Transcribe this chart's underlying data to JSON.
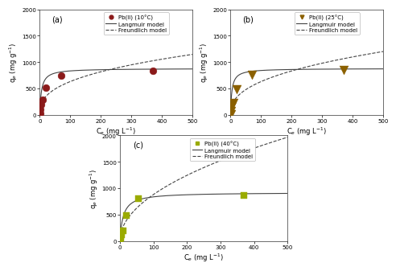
{
  "panels": [
    {
      "label": "(a)",
      "temp": "10",
      "marker_color": "#8B1A1A",
      "marker_style": "o",
      "marker_size": 4,
      "data_x": [
        1,
        2,
        5,
        10,
        20,
        70,
        370
      ],
      "data_y": [
        25,
        100,
        200,
        280,
        510,
        740,
        840
      ],
      "langmuir_qmax": 880,
      "langmuir_KL": 0.18,
      "freundlich_Kf": 115,
      "freundlich_n": 0.37,
      "xlim": [
        0,
        500
      ],
      "ylim": [
        0,
        2000
      ],
      "xlabel": "C$_e$ (mg L$^{-1}$)",
      "ylabel": "q$_e$ (mg g$^{-1}$)",
      "xticks": [
        0,
        100,
        200,
        300,
        400,
        500
      ],
      "yticks": [
        0,
        500,
        1000,
        1500,
        2000
      ]
    },
    {
      "label": "(b)",
      "temp": "25",
      "marker_color": "#8B6000",
      "marker_style": "v",
      "marker_size": 5,
      "data_x": [
        1,
        2,
        5,
        10,
        20,
        70,
        370
      ],
      "data_y": [
        15,
        80,
        170,
        230,
        490,
        760,
        850
      ],
      "langmuir_qmax": 880,
      "langmuir_KL": 0.22,
      "freundlich_Kf": 100,
      "freundlich_n": 0.4,
      "xlim": [
        0,
        500
      ],
      "ylim": [
        0,
        2000
      ],
      "xlabel": "C$_e$ (mg L$^{-1}$)",
      "ylabel": "q$_e$ (mg g$^{-1}$)",
      "xticks": [
        0,
        100,
        200,
        300,
        400,
        500
      ],
      "yticks": [
        0,
        500,
        1000,
        1500,
        2000
      ]
    },
    {
      "label": "(c)",
      "temp": "40",
      "marker_color": "#9aab00",
      "marker_style": "s",
      "marker_size": 4,
      "data_x": [
        1,
        2,
        5,
        10,
        20,
        55,
        370
      ],
      "data_y": [
        10,
        50,
        110,
        190,
        490,
        800,
        870
      ],
      "langmuir_qmax": 920,
      "langmuir_KL": 0.1,
      "freundlich_Kf": 88,
      "freundlich_n": 0.5,
      "xlim": [
        0,
        500
      ],
      "ylim": [
        0,
        2000
      ],
      "xlabel": "C$_e$ (mg L$^{-1}$)",
      "ylabel": "q$_e$ (mg g$^{-1}$)",
      "xticks": [
        0,
        100,
        200,
        300,
        400,
        500
      ],
      "yticks": [
        0,
        500,
        1000,
        1500,
        2000
      ]
    }
  ],
  "langmuir_color": "#444444",
  "freundlich_color": "#444444",
  "bg_color": "#ffffff",
  "legend_fontsize": 5.0,
  "axis_fontsize": 6.0,
  "tick_fontsize": 5.0,
  "label_fontsize": 7.0
}
